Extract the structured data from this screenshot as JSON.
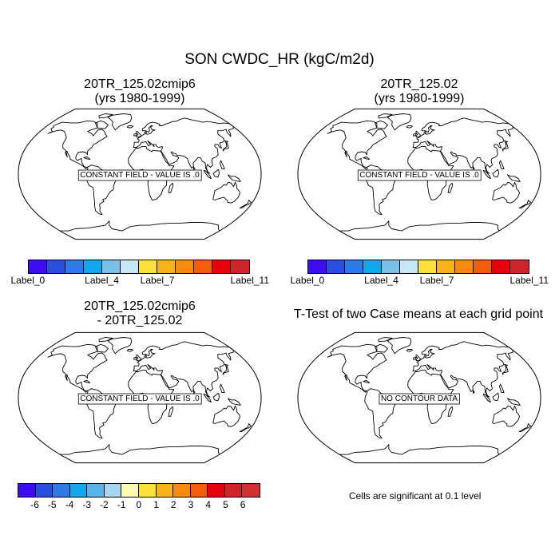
{
  "title": "SON CWDC_HR (kgC/m2d)",
  "panels": [
    {
      "title": "20TR_125.02cmip6\n(yrs 1980-1999)",
      "message": "CONSTANT FIELD - VALUE IS .0"
    },
    {
      "title": "20TR_125.02\n(yrs 1980-1999)",
      "message": "CONSTANT FIELD - VALUE IS .0"
    },
    {
      "title": "20TR_125.02cmip6\n- 20TR_125.02",
      "message": "CONSTANT FIELD - VALUE IS .0"
    },
    {
      "title": "T-Test of two Case means at each grid point",
      "message": "NO CONTOUR DATA"
    }
  ],
  "colorbar_top": {
    "colors": [
      "#3d0cf2",
      "#2b4fdf",
      "#2f7be6",
      "#12a6ec",
      "#7ac1e8",
      "#c6e8f6",
      "#fde03a",
      "#f8b21c",
      "#f78a12",
      "#f35d0c",
      "#e8000d",
      "#cf2429"
    ],
    "labels": [
      {
        "text": "Label_0",
        "at": 0
      },
      {
        "text": "Label_4",
        "at": 4
      },
      {
        "text": "Label_7",
        "at": 7
      },
      {
        "text": "Label_11",
        "at": 11
      }
    ]
  },
  "colorbar_bottom": {
    "colors": [
      "#3d0cf2",
      "#2b4fdf",
      "#2f7be6",
      "#12a6ec",
      "#55b5ea",
      "#a6d6f2",
      "#fdfbb0",
      "#fde03a",
      "#f8b21c",
      "#f78a12",
      "#f35d0c",
      "#e8000d",
      "#cf2429",
      "#cf3030"
    ],
    "labels": [
      "-6",
      "-5",
      "-4",
      "-3",
      "-2",
      "-1",
      "0",
      "1",
      "2",
      "3",
      "4",
      "5",
      "6"
    ]
  },
  "significance_note": "Cells are significant at 0.1 level"
}
